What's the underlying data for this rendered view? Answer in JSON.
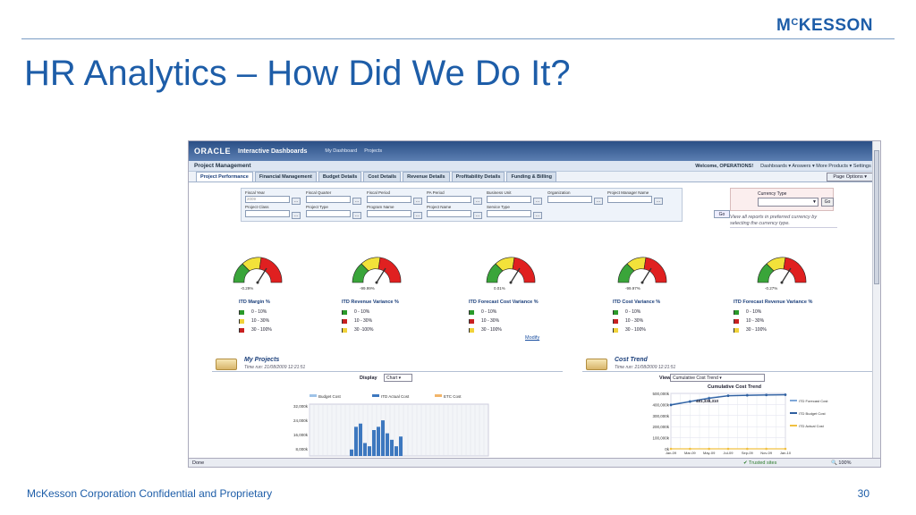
{
  "slide": {
    "logo": {
      "pre": "M",
      "sup": "C",
      "post": "KESSON"
    },
    "title": "HR Analytics – How Did We Do It?",
    "footer_left": "McKesson Corporation Confidential and Proprietary",
    "page_number": "30"
  },
  "app": {
    "brand": "ORACLE",
    "product": "Interactive Dashboards",
    "nav": [
      "My Dashboard",
      "Projects"
    ],
    "page_title": "Project Management",
    "welcome": "Welcome, OPERATIONS!",
    "top_links": "Dashboards ▾  Answers ▾  More Products ▾  Settings ▾",
    "tabs": [
      "Project Performance",
      "Financial Management",
      "Budget Details",
      "Cost Details",
      "Revenue Details",
      "Profitability Details",
      "Funding & Billing"
    ],
    "page_options": "Page Options ▾",
    "filters": {
      "row1": [
        "Fiscal Year",
        "Fiscal Quarter",
        "Fiscal Period",
        "PA Period",
        "Business Unit",
        "Organization",
        "Project Manager Name"
      ],
      "row2": [
        "Project Class",
        "Project Type",
        "Program Name",
        "Project Name",
        "Service Type"
      ],
      "fiscal_year_value": "2009",
      "go": "Go"
    },
    "currency": {
      "label": "Currency Type",
      "go": "Go",
      "note": "View all reports in preferred currency by selecting the currency type."
    },
    "gauges": [
      {
        "title": "ITD Margin %",
        "value": "-0.29%",
        "color": "#2a8a2a"
      },
      {
        "title": "ITD Revenue Variance %",
        "value": "-99.99%",
        "color": "#c02020"
      },
      {
        "title": "ITD Forecast Cost Variance %",
        "value": "0.01%",
        "color": "#2a8a2a"
      },
      {
        "title": "ITD Cost Variance %",
        "value": "-99.97%",
        "color": "#c02020"
      },
      {
        "title": "ITD Forecast Revenue Variance %",
        "value": "-0.27%",
        "color": "#2a8a2a"
      }
    ],
    "legend_rows": [
      [
        "0 - 10%",
        "10 - 30%",
        "30 - 100%"
      ],
      [
        "0 - 10%",
        "10 - 30%",
        "30 -100%"
      ],
      [
        "0 - 10%",
        "10 - 30%",
        "30 - 100%"
      ],
      [
        "0 - 10%",
        "10 - 30%",
        "30 - 100%"
      ],
      [
        "0 - 10%",
        "10 - 30%",
        "30 - 100%"
      ]
    ],
    "modify": "Modify",
    "my_projects": {
      "title": "My Projects",
      "time": "Time run: 21/08/2009 12:21:51",
      "display_label": "Display",
      "display_value": "Chart"
    },
    "cost_trend": {
      "title": "Cost Trend",
      "time": "Time run: 21/08/2009 12:21:51",
      "view_label": "View",
      "view_value": "Cumulative Cost Trend"
    },
    "status": {
      "done": "Done",
      "trusted": "Trusted sites",
      "zoom": "100%"
    }
  },
  "chart_data": [
    {
      "type": "bar",
      "title": "",
      "legend": [
        "Budget Cost",
        "ITD Actual Cost",
        "ETC Cost"
      ],
      "yticks": [
        "32,000k",
        "24,000k",
        "16,000k",
        "8,000k"
      ],
      "series": [
        {
          "name": "ITD Actual Cost",
          "values": [
            2,
            9,
            10,
            4,
            3,
            8,
            9,
            11,
            7,
            5,
            3,
            6
          ]
        }
      ]
    },
    {
      "type": "line",
      "title": "Cumulative Cost Trend",
      "x": [
        "Jan-09",
        "Mar-09",
        "May-09",
        "Jul-09",
        "Sep-09",
        "Nov-09",
        "Jan-10"
      ],
      "yticks": [
        "500,000k",
        "400,000k",
        "300,000k",
        "200,000k",
        "100,000k",
        "0k"
      ],
      "annotation": "481,338,310",
      "legend": [
        "ITD Forecast Cost",
        "ITD Budget Cost",
        "ITD Actual Cost"
      ],
      "series": [
        {
          "name": "ITD Forecast Cost",
          "values": [
            400,
            430,
            460,
            481,
            485,
            488,
            490
          ]
        },
        {
          "name": "ITD Budget Cost",
          "values": [
            395,
            425,
            455,
            478,
            482,
            485,
            487
          ]
        },
        {
          "name": "ITD Actual Cost",
          "values": [
            0,
            0,
            0,
            0,
            0,
            0,
            0
          ]
        }
      ]
    }
  ]
}
